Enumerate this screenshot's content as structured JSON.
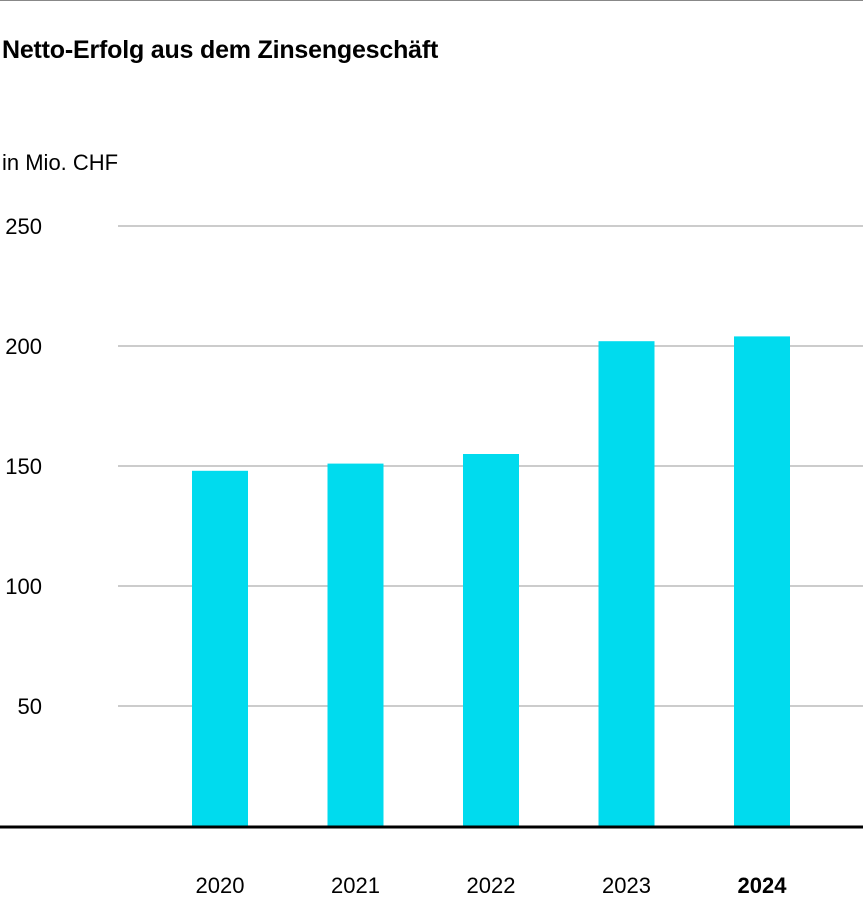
{
  "chart_data": {
    "type": "bar",
    "title": "Netto-Erfolg aus dem Zinsengeschäft",
    "unit_label": "in Mio. CHF",
    "categories": [
      "2020",
      "2021",
      "2022",
      "2023",
      "2024"
    ],
    "values": [
      148,
      151,
      155,
      202,
      204
    ],
    "highlighted_category": "2024",
    "yticks": [
      "50",
      "100",
      "150",
      "200",
      "250"
    ],
    "ylim": [
      0,
      250
    ],
    "grid": true,
    "colors": {
      "bar": "#00dbee",
      "highlight_text": "#00cbe0",
      "grid": "#999999",
      "axis": "#000000"
    }
  }
}
